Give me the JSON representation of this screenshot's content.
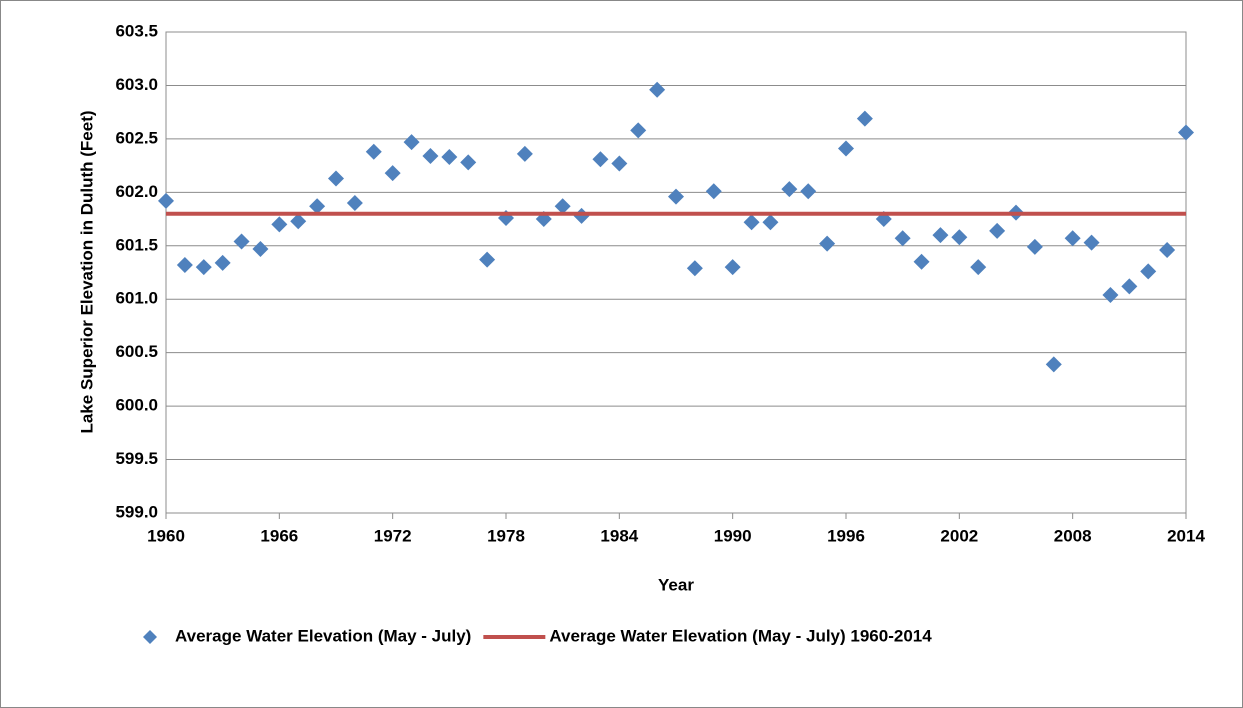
{
  "chart_data": {
    "type": "scatter",
    "x_label": "Year",
    "y_label": "Lake Superior Elevation in Duluth (Feet)",
    "x": [
      1960,
      1961,
      1962,
      1963,
      1964,
      1965,
      1966,
      1967,
      1968,
      1969,
      1970,
      1971,
      1972,
      1973,
      1974,
      1975,
      1976,
      1977,
      1978,
      1979,
      1980,
      1981,
      1982,
      1983,
      1984,
      1985,
      1986,
      1987,
      1988,
      1989,
      1990,
      1991,
      1992,
      1993,
      1994,
      1995,
      1996,
      1997,
      1998,
      1999,
      2000,
      2001,
      2002,
      2003,
      2004,
      2005,
      2006,
      2007,
      2008,
      2009,
      2010,
      2011,
      2012,
      2013,
      2014
    ],
    "series": [
      {
        "name": "Average Water Elevation (May - July)",
        "color": "#4f81bd",
        "marker": "diamond",
        "values": [
          601.92,
          601.32,
          601.3,
          601.34,
          601.54,
          601.47,
          601.7,
          601.73,
          601.87,
          602.13,
          601.9,
          602.38,
          602.18,
          602.47,
          602.34,
          602.33,
          602.28,
          601.37,
          601.76,
          602.36,
          601.75,
          601.87,
          601.78,
          602.31,
          602.27,
          602.58,
          602.96,
          601.96,
          601.29,
          602.01,
          601.3,
          601.72,
          601.72,
          602.03,
          602.01,
          601.52,
          602.41,
          602.69,
          601.75,
          601.57,
          601.35,
          601.6,
          601.58,
          601.3,
          601.64,
          601.81,
          601.49,
          600.39,
          601.57,
          601.53,
          601.04,
          601.12,
          601.26,
          601.46,
          602.56
        ]
      },
      {
        "name": "Average Water Elevation (May - July) 1960-2014",
        "color": "#c0504d",
        "marker": "line",
        "x": [
          1960,
          2014
        ],
        "values": [
          601.8,
          601.8
        ]
      }
    ],
    "xlim": [
      1960,
      2014
    ],
    "xticks": [
      1960,
      1966,
      1972,
      1978,
      1984,
      1990,
      1996,
      2002,
      2008,
      2014
    ],
    "ylim": [
      599,
      603.5
    ],
    "yticks": [
      {
        "value": 599,
        "label": "599.0"
      },
      599.5,
      {
        "value": 600,
        "label": "600.0"
      },
      600.5,
      {
        "value": 601,
        "label": "601.0"
      },
      601.5,
      {
        "value": 602,
        "label": "602.0"
      },
      602.5,
      {
        "value": 603,
        "label": "603.0"
      },
      603.5
    ],
    "grid": true,
    "legend": "bottom"
  }
}
